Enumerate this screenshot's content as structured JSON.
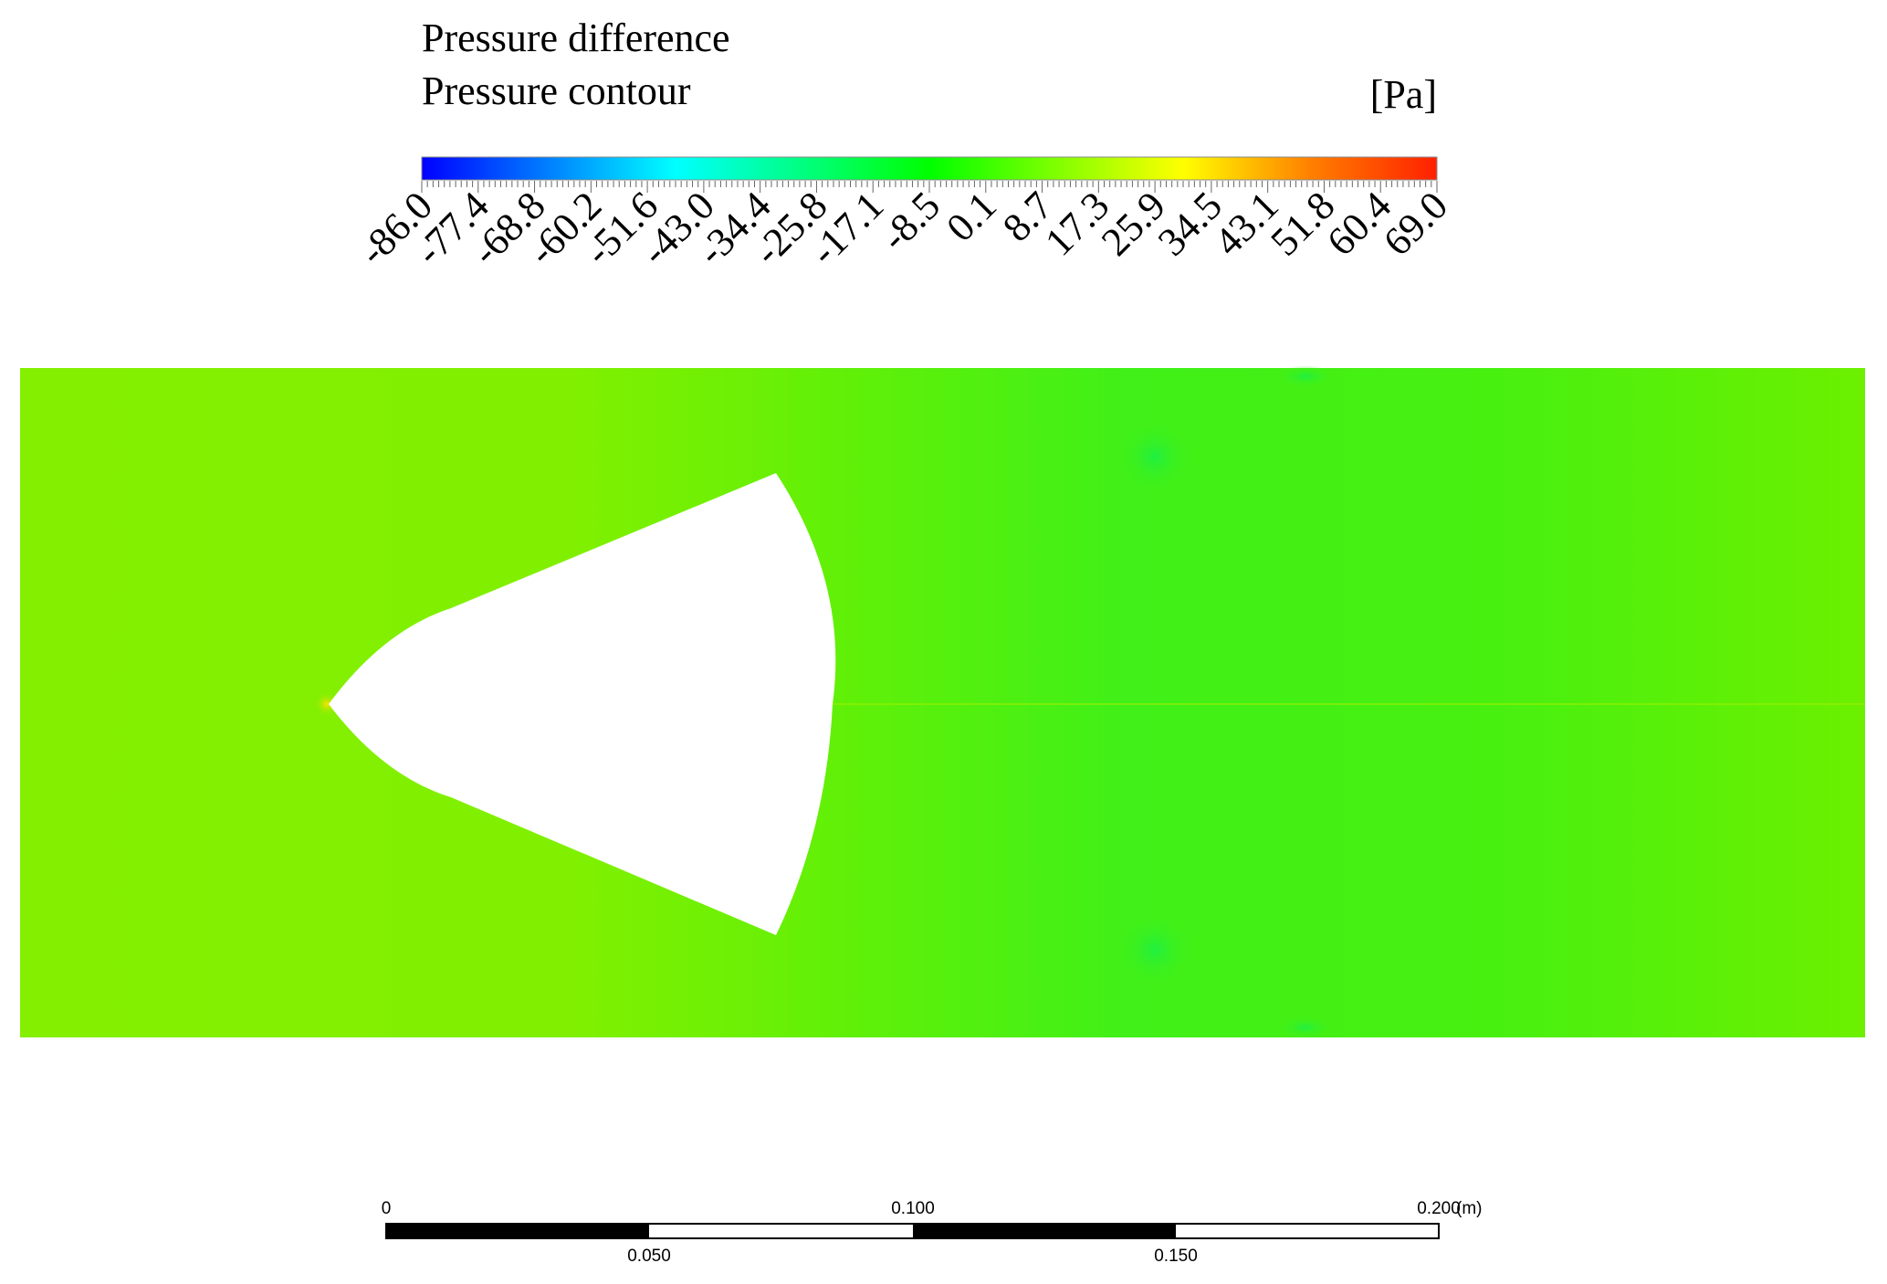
{
  "legend": {
    "variable": "Pressure difference",
    "title": "Pressure contour",
    "unit": "[Pa]",
    "range": [
      -86.0,
      69.0
    ],
    "tick_labels": [
      "-86.0",
      "-77.4",
      "-68.8",
      "-60.2",
      "-51.6",
      "-43.0",
      "-34.4",
      "-25.8",
      "-17.1",
      "-8.5",
      "0.1",
      "8.7",
      "17.3",
      "25.9",
      "34.5",
      "43.1",
      "51.8",
      "60.4",
      "69.0"
    ],
    "colormap": [
      "#0000ff",
      "#0080ff",
      "#00ffff",
      "#00ff80",
      "#00ff00",
      "#80ff00",
      "#ffff00",
      "#ff8000",
      "#ff2000"
    ]
  },
  "field": {
    "colors": {
      "upstream": "#80f000",
      "wake": "#3ef018",
      "stagnation": "#ffe000"
    }
  },
  "scale_bar": {
    "top_labels": [
      "0",
      "0.100",
      "0.200"
    ],
    "bottom_labels": [
      "0.050",
      "0.150"
    ],
    "unit": "(m)"
  }
}
